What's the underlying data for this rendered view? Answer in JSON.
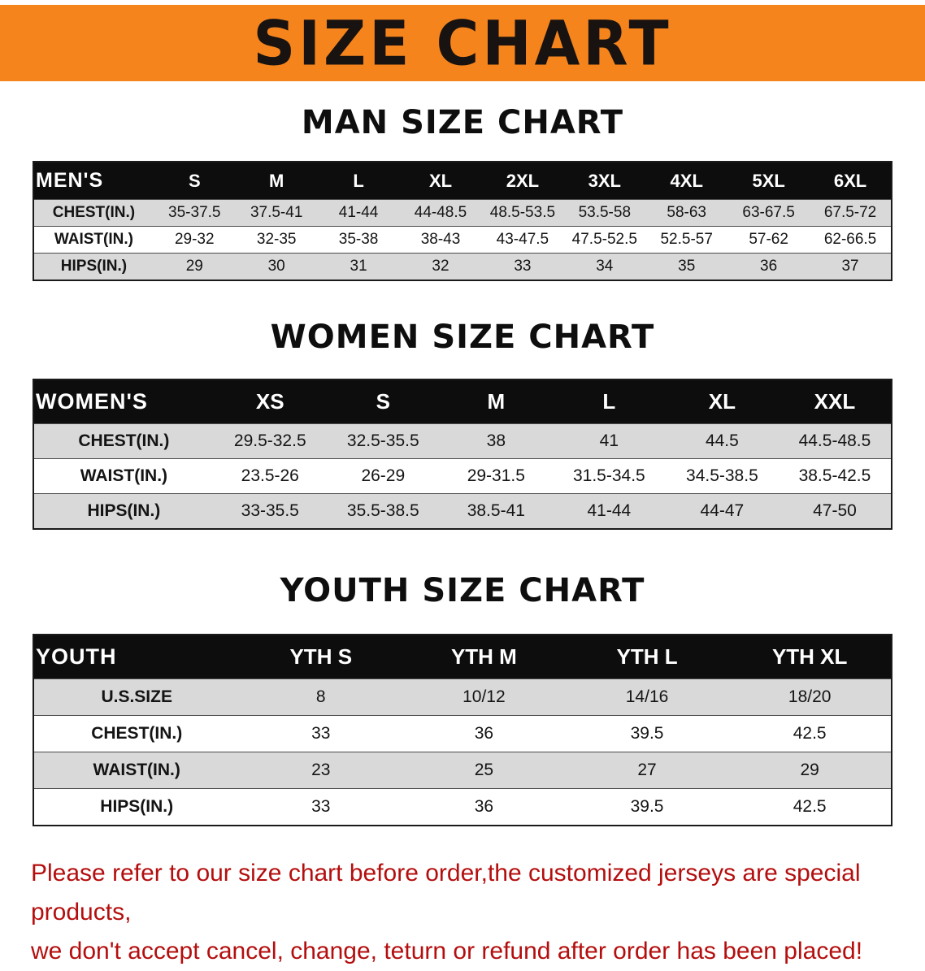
{
  "banner": {
    "title": "SIZE CHART"
  },
  "sections": [
    {
      "id": "men",
      "heading": "MAN SIZE CHART",
      "header": [
        "MEN'S",
        "S",
        "M",
        "L",
        "XL",
        "2XL",
        "3XL",
        "4XL",
        "5XL",
        "6XL"
      ],
      "rows": [
        [
          "CHEST(IN.)",
          "35-37.5",
          "37.5-41",
          "41-44",
          "44-48.5",
          "48.5-53.5",
          "53.5-58",
          "58-63",
          "63-67.5",
          "67.5-72"
        ],
        [
          "WAIST(IN.)",
          "29-32",
          "32-35",
          "35-38",
          "38-43",
          "43-47.5",
          "47.5-52.5",
          "52.5-57",
          "57-62",
          "62-66.5"
        ],
        [
          "HIPS(IN.)",
          "29",
          "30",
          "31",
          "32",
          "33",
          "34",
          "35",
          "36",
          "37"
        ]
      ]
    },
    {
      "id": "women",
      "heading": "WOMEN SIZE CHART",
      "header": [
        "WOMEN'S",
        "XS",
        "S",
        "M",
        "L",
        "XL",
        "XXL"
      ],
      "rows": [
        [
          "CHEST(IN.)",
          "29.5-32.5",
          "32.5-35.5",
          "38",
          "41",
          "44.5",
          "44.5-48.5"
        ],
        [
          "WAIST(IN.)",
          "23.5-26",
          "26-29",
          "29-31.5",
          "31.5-34.5",
          "34.5-38.5",
          "38.5-42.5"
        ],
        [
          "HIPS(IN.)",
          "33-35.5",
          "35.5-38.5",
          "38.5-41",
          "41-44",
          "44-47",
          "47-50"
        ]
      ]
    },
    {
      "id": "youth",
      "heading": "YOUTH SIZE CHART",
      "header": [
        "YOUTH",
        "YTH S",
        "YTH M",
        "YTH L",
        "YTH XL"
      ],
      "rows": [
        [
          "U.S.SIZE",
          "8",
          "10/12",
          "14/16",
          "18/20"
        ],
        [
          "CHEST(IN.)",
          "33",
          "36",
          "39.5",
          "42.5"
        ],
        [
          "WAIST(IN.)",
          "23",
          "25",
          "27",
          "29"
        ],
        [
          "HIPS(IN.)",
          "33",
          "36",
          "39.5",
          "42.5"
        ]
      ]
    }
  ],
  "footer": {
    "line1": "Please refer to our size chart before order,the customized jerseys are special products,",
    "line2": "we don't accept cancel, change, teturn or refund after order has been placed!"
  },
  "colors": {
    "banner_orange": "#F5841D",
    "table_header_black": "#0D0D0D",
    "row_gray": "#D9D9D9",
    "notice_red": "#B40E0E"
  }
}
